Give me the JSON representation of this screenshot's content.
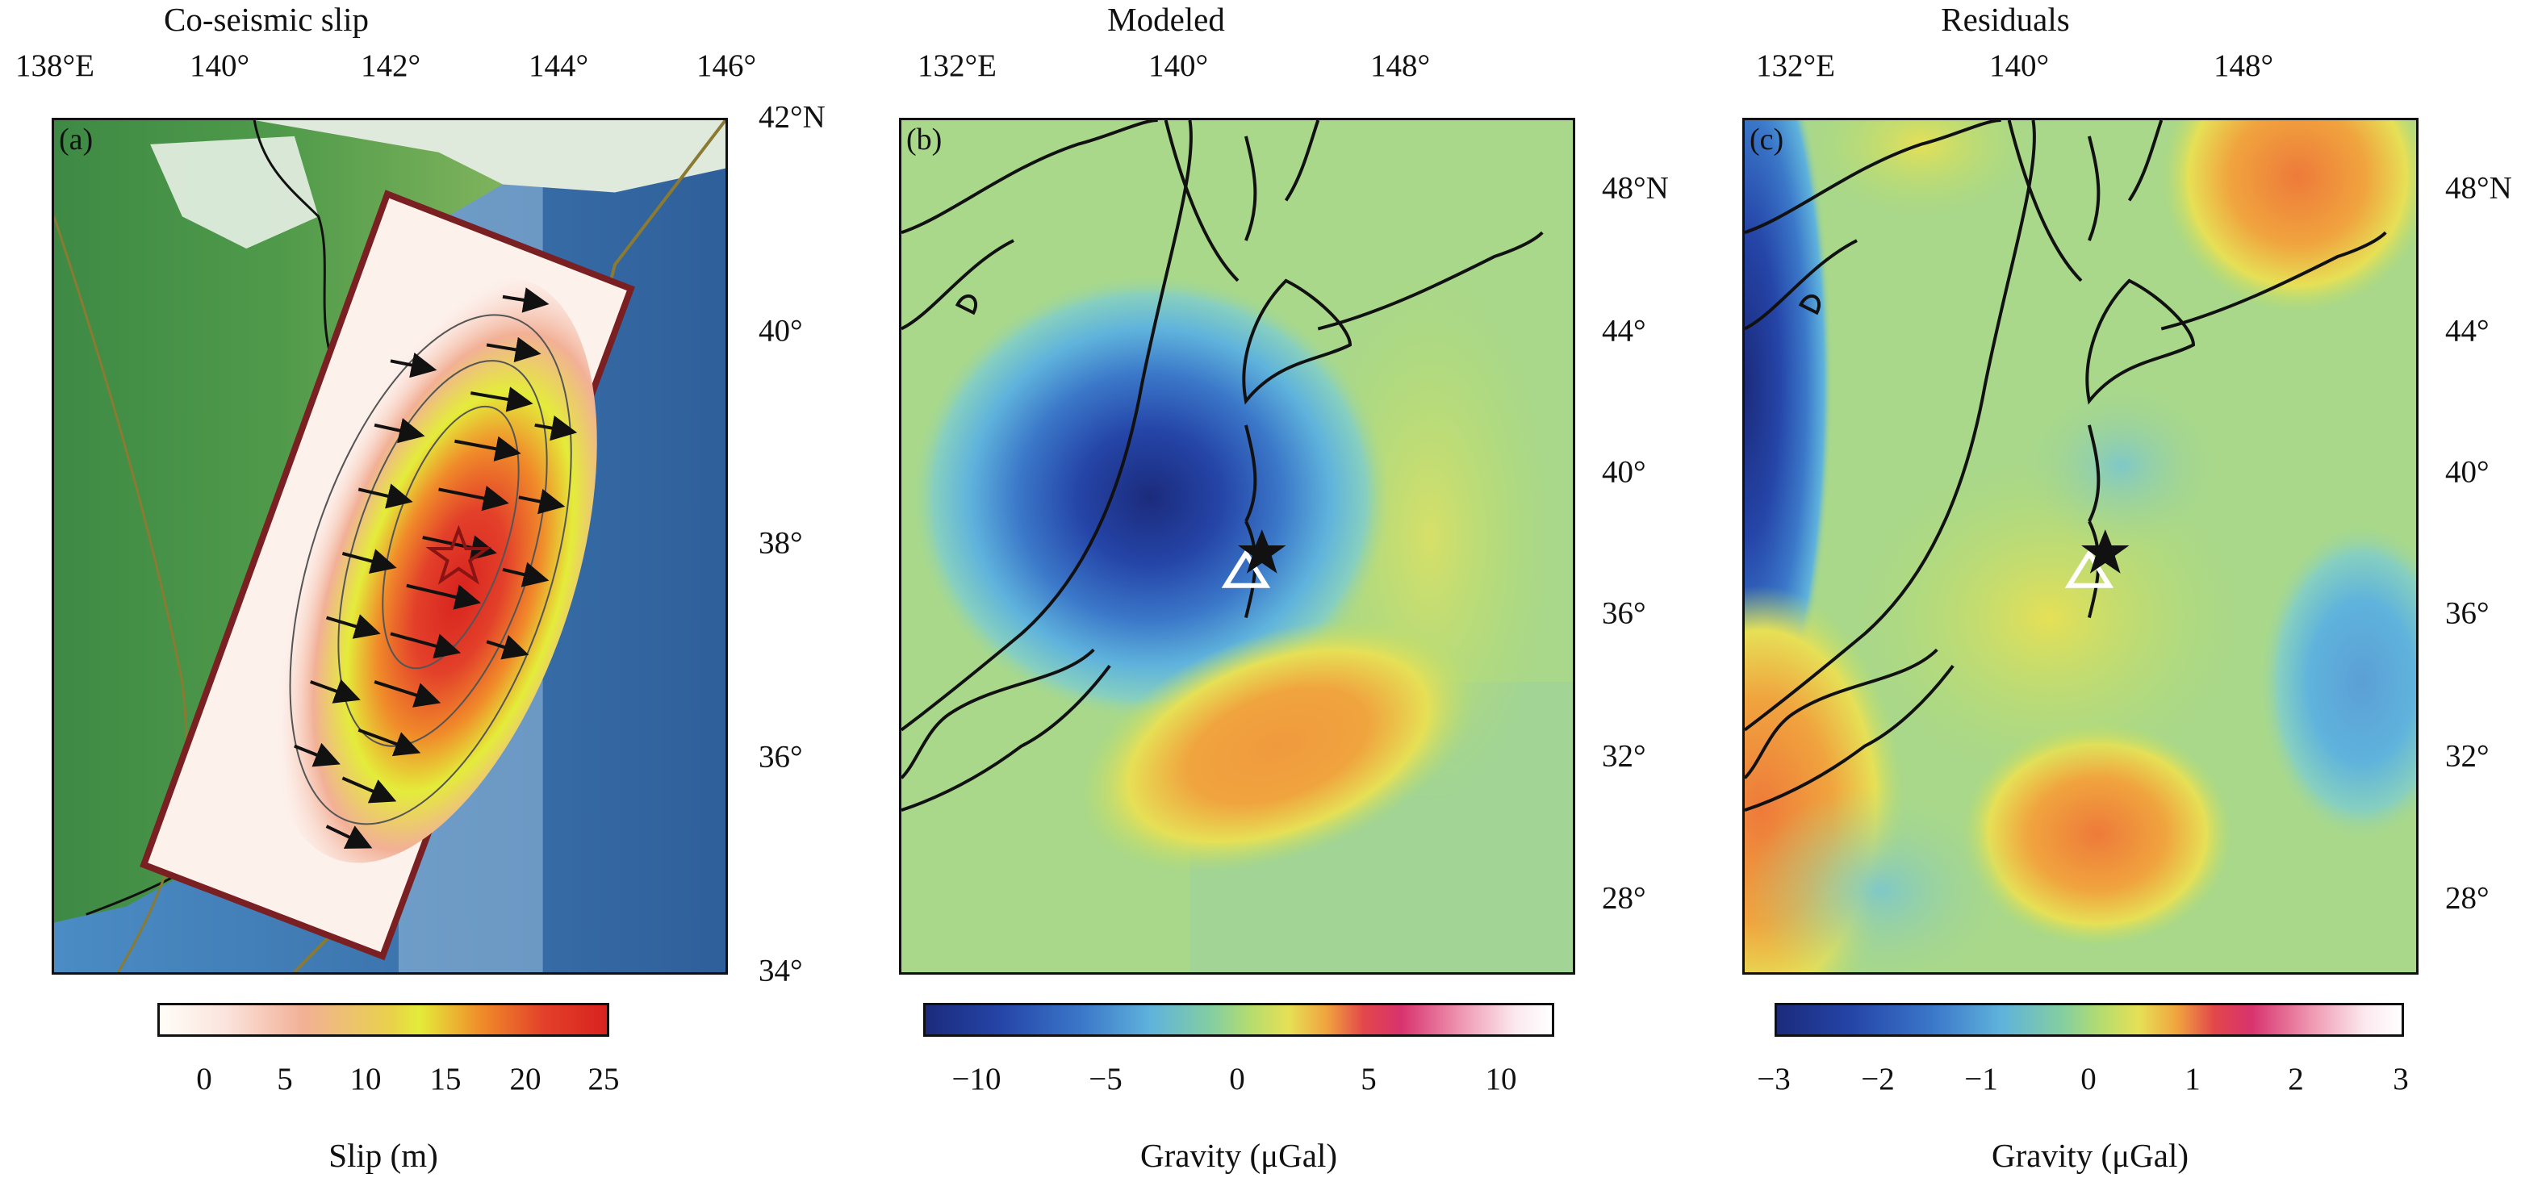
{
  "chart_data": [
    {
      "type": "heatmap",
      "panel_label": "(a)",
      "title": "Co-seismic slip",
      "x_ticks": [
        "138°E",
        "140°",
        "142°",
        "144°",
        "146°"
      ],
      "y_ticks": [
        "42°N",
        "40°",
        "38°",
        "36°",
        "34°"
      ],
      "xlim": [
        138,
        146
      ],
      "ylim": [
        34,
        42
      ],
      "colorbar": {
        "label": "Slip (m)",
        "ticks": [
          "0",
          "5",
          "10",
          "15",
          "20",
          "25"
        ],
        "range": [
          -2,
          25
        ],
        "colors": [
          "#fffdf8",
          "#fbe3dc",
          "#f2b096",
          "#e9d24a",
          "#e4ec3a",
          "#f08b2a",
          "#e3402a",
          "#d8231f"
        ]
      },
      "epicenter": {
        "lon": 142.4,
        "lat": 38.1
      }
    },
    {
      "type": "heatmap",
      "panel_label": "(b)",
      "title": "Modeled",
      "x_ticks": [
        "132°E",
        "140°",
        "148°"
      ],
      "y_ticks": [
        "48°N",
        "44°",
        "40°",
        "36°",
        "32°",
        "28°"
      ],
      "colorbar": {
        "label": "Gravity (μGal)",
        "ticks": [
          "−10",
          "−5",
          "0",
          "5",
          "10"
        ],
        "range": [
          -12,
          12
        ],
        "colors": [
          "#1b2b7c",
          "#2545a8",
          "#3b78c9",
          "#5fb3dc",
          "#86cf9e",
          "#b6dc6e",
          "#e6e056",
          "#f0a43e",
          "#e2474a",
          "#d8336e",
          "#f09cb5",
          "#fbe8ee",
          "#ffffff"
        ]
      },
      "station": {
        "lon": 142.4,
        "lat": 37.8
      },
      "epicenter": {
        "lon": 142.9,
        "lat": 38.1
      }
    },
    {
      "type": "heatmap",
      "panel_label": "(c)",
      "title": "Residuals",
      "x_ticks": [
        "132°E",
        "140°",
        "148°"
      ],
      "y_ticks": [
        "48°N",
        "44°",
        "40°",
        "36°",
        "32°",
        "28°"
      ],
      "colorbar": {
        "label": "Gravity (μGal)",
        "ticks": [
          "−3",
          "−2",
          "−1",
          "0",
          "1",
          "2",
          "3"
        ],
        "range": [
          -3,
          3
        ],
        "colors": [
          "#1b2b7c",
          "#2545a8",
          "#3b78c9",
          "#5fb3dc",
          "#86cf9e",
          "#b6dc6e",
          "#e6e056",
          "#f0a43e",
          "#e2474a",
          "#d8336e",
          "#f09cb5",
          "#fbe8ee",
          "#ffffff"
        ]
      },
      "station": {
        "lon": 142.4,
        "lat": 37.8
      },
      "epicenter": {
        "lon": 142.9,
        "lat": 38.1
      }
    }
  ]
}
